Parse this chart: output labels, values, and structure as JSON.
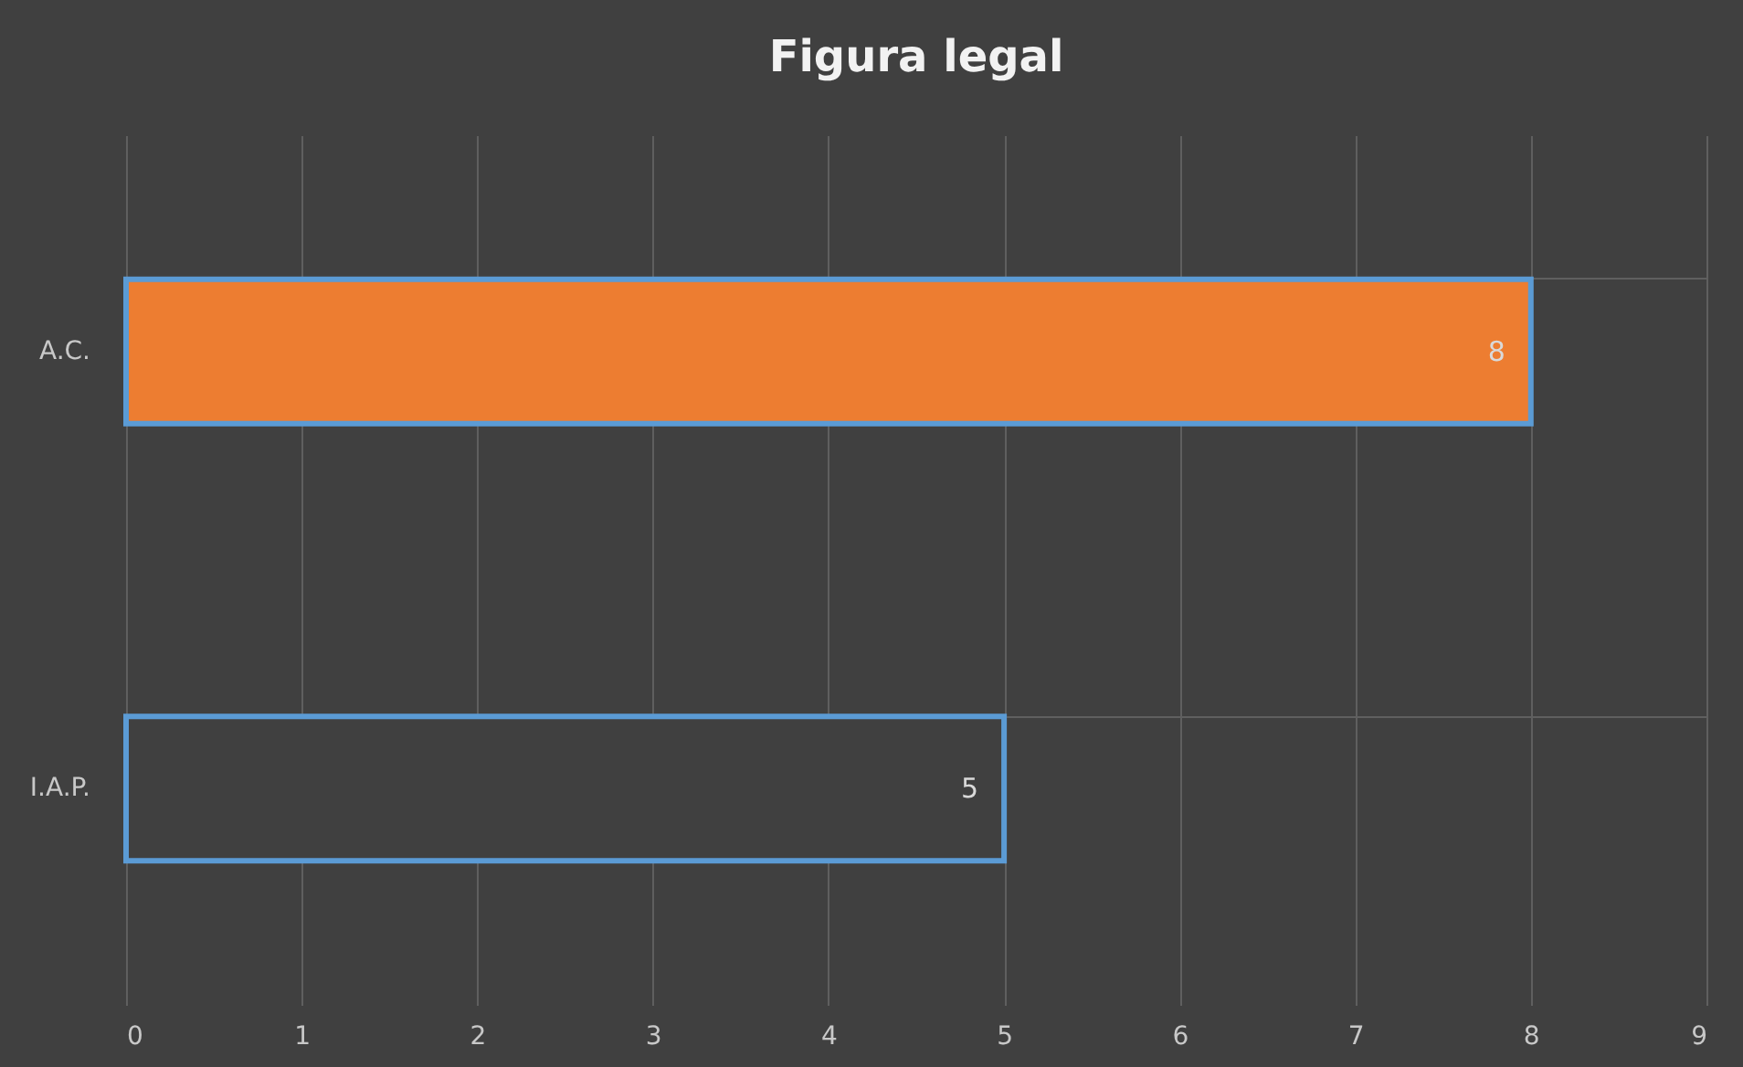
{
  "chart_data": {
    "type": "bar",
    "orientation": "horizontal",
    "title": "Figura legal",
    "categories": [
      "A.C.",
      "I.A.P."
    ],
    "values": [
      8,
      5
    ],
    "colors": [
      "#ed7d31",
      "#404040"
    ],
    "xlim": [
      0,
      9
    ],
    "xticks": [
      0,
      1,
      2,
      3,
      4,
      5,
      6,
      7,
      8,
      9
    ],
    "grid": true,
    "data_labels": true
  }
}
